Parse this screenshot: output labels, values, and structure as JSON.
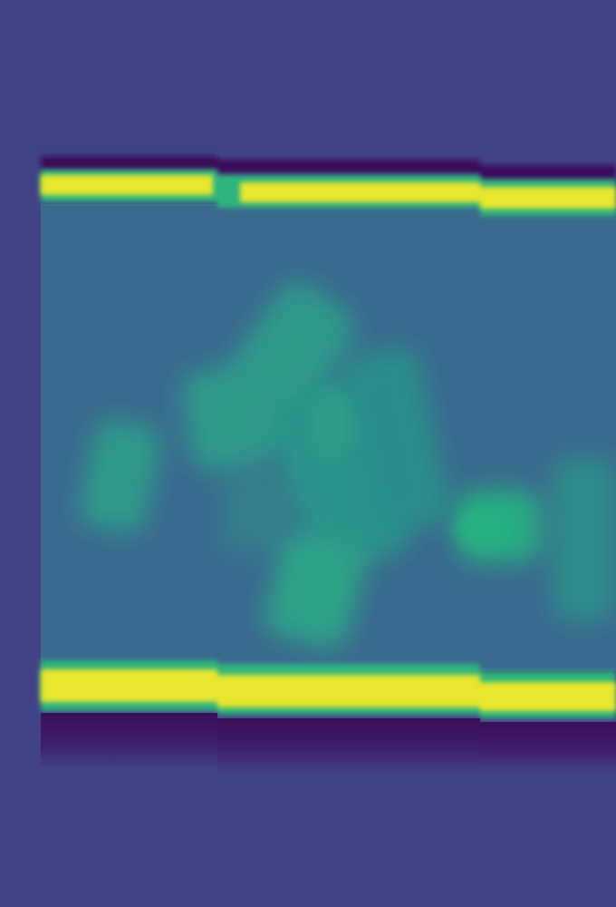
{
  "image": {
    "colormap": "viridis",
    "colors": {
      "background": "#424387",
      "channel_fill": "#3a6a8e",
      "band_bright": "#e8e62e",
      "band_edge": "#2fb47c",
      "band_dark": "#3b0f5a",
      "particle": "#2f9a8a",
      "particle_bright": "#27ad82"
    }
  }
}
